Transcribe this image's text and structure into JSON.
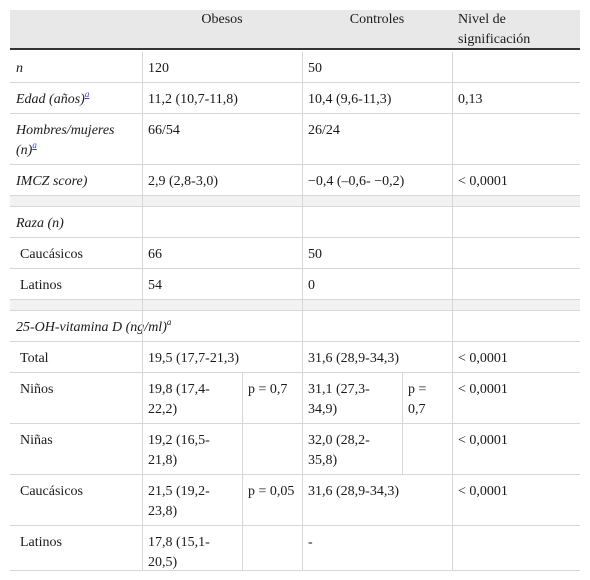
{
  "header": {
    "col1": "",
    "obesos": "Obesos",
    "controles": "Controles",
    "nivel": "Nivel de significación"
  },
  "rows": {
    "n": {
      "label": "n",
      "obesos": "120",
      "controles": "50",
      "p": ""
    },
    "edad": {
      "label": "Edad (años)",
      "sup": "a",
      "obesos": "11,2 (10,7-11,8)",
      "controles": "10,4 (9,6-11,3)",
      "p": "0,13"
    },
    "sexo": {
      "label": "Hombres/mujeres (n)",
      "sup": "a",
      "obesos": "66/54",
      "controles": "26/24",
      "p": ""
    },
    "imcz": {
      "label": "IMCZ score)",
      "obesos": "2,9 (2,8-3,0)",
      "controles": "−0,4 (–0,6- −0,2)",
      "p": "< 0,0001"
    },
    "raza": {
      "label": "Raza (n)"
    },
    "caucasicos": {
      "label": "Caucásicos",
      "obesos": "66",
      "controles": "50"
    },
    "latinos": {
      "label": "Latinos",
      "obesos": "54",
      "controles": "0"
    },
    "vitd": {
      "label": "25-OH-vitamina D (ng/ml)",
      "sup": "a"
    },
    "total": {
      "label": "Total",
      "obesos": "19,5 (17,7-21,3)",
      "controles": "31,6 (28,9-34,3)",
      "p": "< 0,0001"
    },
    "ninos": {
      "label": "Niños",
      "obesos": "19,8 (17,4-22,2)",
      "obesos_p": "p = 0,7",
      "controles": "31,1 (27,3-34,9)",
      "controles_p": "p = 0,7",
      "p": "< 0,0001"
    },
    "ninas": {
      "label": "Niñas",
      "obesos": "19,2 (16,5-21,8)",
      "controles": "32,0 (28,2-35,8)",
      "p": "< 0,0001"
    },
    "vit_cauc": {
      "label": "Caucásicos",
      "obesos": "21,5 (19,2-23,8)",
      "obesos_p": "p = 0,05",
      "controles": "31,6 (28,9-34,3)",
      "p": "< 0,0001"
    },
    "vit_lat": {
      "label": "Latinos",
      "obesos": "17,8 (15,1-20,5)",
      "controles": "-"
    }
  }
}
